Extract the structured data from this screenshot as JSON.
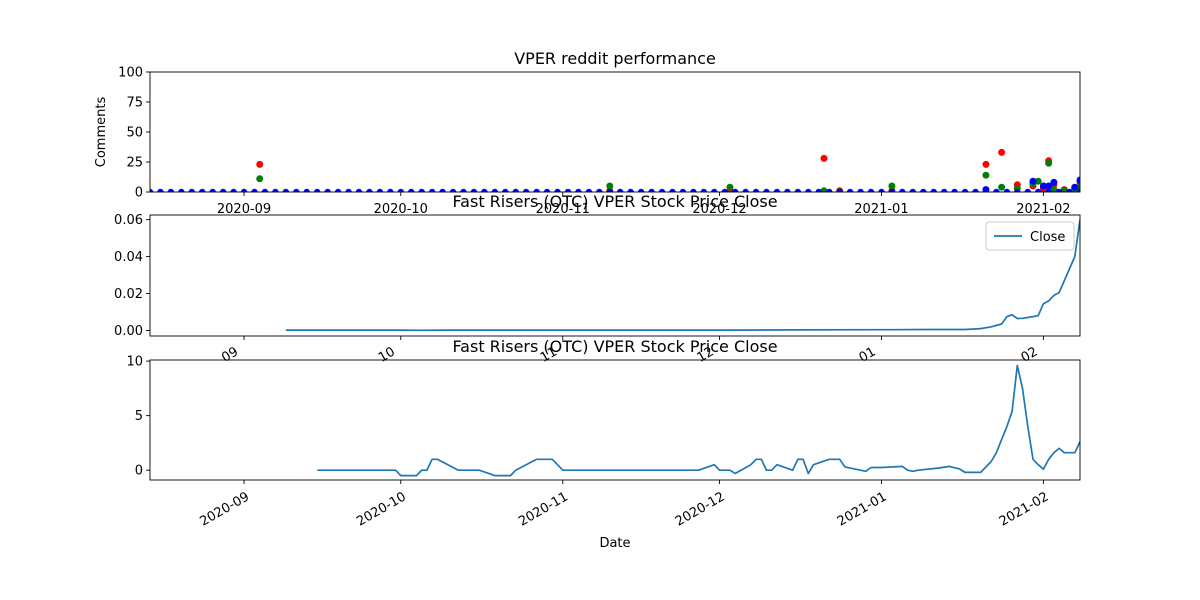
{
  "colors": {
    "red": "#ff0000",
    "green": "#008000",
    "blue": "#0000ff",
    "line": "#1f77b4",
    "frame": "#000000",
    "legend_border": "#cccccc"
  },
  "chart_data": [
    {
      "type": "scatter",
      "title": "VPER reddit performance",
      "xlabel": "",
      "ylabel": "Comments",
      "xlim": [
        "2020-08-14",
        "2021-02-08"
      ],
      "ylim": [
        0,
        100
      ],
      "yticks": [
        0,
        25,
        50,
        75,
        100
      ],
      "xticks": [
        "2020-09",
        "2020-10",
        "2020-11",
        "2020-12",
        "2021-01",
        "2021-02"
      ],
      "grid": false,
      "series": [
        {
          "color": "red",
          "points": [
            [
              "2020-09-04",
              23
            ],
            [
              "2020-11-10",
              1
            ],
            [
              "2020-12-03",
              1
            ],
            [
              "2020-12-21",
              28
            ],
            [
              "2020-12-24",
              1
            ],
            [
              "2021-01-03",
              1
            ],
            [
              "2021-01-21",
              23
            ],
            [
              "2021-01-24",
              33
            ],
            [
              "2021-01-27",
              6
            ],
            [
              "2021-01-30",
              5
            ],
            [
              "2021-02-01",
              3
            ],
            [
              "2021-02-02",
              26
            ],
            [
              "2021-02-03",
              6
            ],
            [
              "2021-02-05",
              2
            ],
            [
              "2021-02-07",
              3
            ],
            [
              "2021-02-08",
              8
            ]
          ]
        },
        {
          "color": "green",
          "points": [
            [
              "2020-09-04",
              11
            ],
            [
              "2020-11-10",
              5
            ],
            [
              "2020-12-03",
              4
            ],
            [
              "2020-12-21",
              1
            ],
            [
              "2020-12-24",
              0
            ],
            [
              "2021-01-03",
              5
            ],
            [
              "2021-01-21",
              14
            ],
            [
              "2021-01-24",
              4
            ],
            [
              "2021-01-27",
              3
            ],
            [
              "2021-01-30",
              7
            ],
            [
              "2021-01-31",
              9
            ],
            [
              "2021-02-01",
              5
            ],
            [
              "2021-02-02",
              24
            ],
            [
              "2021-02-03",
              2
            ],
            [
              "2021-02-05",
              1
            ],
            [
              "2021-02-07",
              3
            ],
            [
              "2021-02-08",
              4
            ]
          ]
        },
        {
          "color": "blue",
          "dense_from": "2020-08-14",
          "dense_to": "2021-02-08",
          "dense_step_days": 2,
          "dense_value": 0,
          "points": [
            [
              "2021-01-21",
              2
            ],
            [
              "2021-01-30",
              9
            ],
            [
              "2021-02-01",
              5
            ],
            [
              "2021-02-02",
              5
            ],
            [
              "2021-02-03",
              8
            ],
            [
              "2021-02-07",
              4
            ],
            [
              "2021-02-08",
              10
            ]
          ]
        }
      ]
    },
    {
      "type": "line",
      "title": "Fast Risers (OTC) VPER Stock Price Close",
      "xlabel": "",
      "ylabel": "",
      "xlim": [
        "2020-08-14",
        "2021-02-08"
      ],
      "ylim": [
        -0.003,
        0.0625
      ],
      "yticks": [
        "0.00",
        "0.02",
        "0.04",
        "0.06"
      ],
      "xticks": [
        "09",
        "10",
        "11",
        "12",
        "01",
        "02"
      ],
      "legend": {
        "position": "top-right",
        "entries": [
          "Close"
        ]
      },
      "series": [
        {
          "name": "Close",
          "color": "line",
          "points": [
            [
              "2020-09-09",
              0.0002
            ],
            [
              "2020-10-01",
              0.0002
            ],
            [
              "2020-10-05",
              0.0001
            ],
            [
              "2020-10-10",
              0.0002
            ],
            [
              "2020-11-01",
              0.0002
            ],
            [
              "2020-12-01",
              0.0002
            ],
            [
              "2020-12-15",
              0.0003
            ],
            [
              "2021-01-01",
              0.0004
            ],
            [
              "2021-01-10",
              0.0005
            ],
            [
              "2021-01-17",
              0.0005
            ],
            [
              "2021-01-20",
              0.001
            ],
            [
              "2021-01-22",
              0.002
            ],
            [
              "2021-01-24",
              0.0035
            ],
            [
              "2021-01-25",
              0.0075
            ],
            [
              "2021-01-26",
              0.0085
            ],
            [
              "2021-01-27",
              0.0065
            ],
            [
              "2021-01-28",
              0.0066
            ],
            [
              "2021-01-30",
              0.0075
            ],
            [
              "2021-01-31",
              0.008
            ],
            [
              "2021-02-01",
              0.0145
            ],
            [
              "2021-02-02",
              0.016
            ],
            [
              "2021-02-03",
              0.019
            ],
            [
              "2021-02-04",
              0.0205
            ],
            [
              "2021-02-07",
              0.04
            ],
            [
              "2021-02-08",
              0.06
            ]
          ]
        }
      ]
    },
    {
      "type": "line",
      "title": "Fast Risers (OTC) VPER Stock Price Close",
      "xlabel": "Date",
      "ylabel": "",
      "xlim": [
        "2020-08-14",
        "2021-02-08"
      ],
      "ylim": [
        -0.9,
        10.1
      ],
      "yticks": [
        0,
        5,
        10
      ],
      "xticks": [
        "2020-09",
        "2020-10",
        "2020-11",
        "2020-12",
        "2021-01",
        "2021-02"
      ],
      "series": [
        {
          "color": "line",
          "points": [
            [
              "2020-09-15",
              0
            ],
            [
              "2020-09-30",
              0
            ],
            [
              "2020-10-01",
              -0.5
            ],
            [
              "2020-10-04",
              -0.5
            ],
            [
              "2020-10-05",
              0
            ],
            [
              "2020-10-06",
              0
            ],
            [
              "2020-10-07",
              1
            ],
            [
              "2020-10-08",
              1
            ],
            [
              "2020-10-12",
              0
            ],
            [
              "2020-10-16",
              0
            ],
            [
              "2020-10-19",
              -0.5
            ],
            [
              "2020-10-22",
              -0.5
            ],
            [
              "2020-10-23",
              0
            ],
            [
              "2020-10-27",
              1
            ],
            [
              "2020-10-30",
              1
            ],
            [
              "2020-11-01",
              0
            ],
            [
              "2020-11-27",
              0
            ],
            [
              "2020-11-30",
              0.5
            ],
            [
              "2020-12-01",
              0
            ],
            [
              "2020-12-03",
              0
            ],
            [
              "2020-12-04",
              -0.3
            ],
            [
              "2020-12-07",
              0.5
            ],
            [
              "2020-12-08",
              1
            ],
            [
              "2020-12-09",
              1
            ],
            [
              "2020-12-10",
              0
            ],
            [
              "2020-12-11",
              0
            ],
            [
              "2020-12-12",
              0.5
            ],
            [
              "2020-12-15",
              0
            ],
            [
              "2020-12-16",
              1
            ],
            [
              "2020-12-17",
              1
            ],
            [
              "2020-12-18",
              -0.3
            ],
            [
              "2020-12-19",
              0.5
            ],
            [
              "2020-12-22",
              1
            ],
            [
              "2020-12-24",
              1
            ],
            [
              "2020-12-25",
              0.3
            ],
            [
              "2020-12-29",
              -0.1
            ],
            [
              "2020-12-30",
              0.25
            ],
            [
              "2021-01-01",
              0.25
            ],
            [
              "2021-01-05",
              0.35
            ],
            [
              "2021-01-06",
              0
            ],
            [
              "2021-01-07",
              -0.1
            ],
            [
              "2021-01-08",
              0
            ],
            [
              "2021-01-12",
              0.2
            ],
            [
              "2021-01-14",
              0.35
            ],
            [
              "2021-01-16",
              0.1
            ],
            [
              "2021-01-17",
              -0.2
            ],
            [
              "2021-01-18",
              -0.2
            ],
            [
              "2021-01-20",
              -0.2
            ],
            [
              "2021-01-21",
              0.3
            ],
            [
              "2021-01-22",
              0.8
            ],
            [
              "2021-01-23",
              1.6
            ],
            [
              "2021-01-24",
              2.8
            ],
            [
              "2021-01-25",
              4
            ],
            [
              "2021-01-26",
              5.4
            ],
            [
              "2021-01-27",
              9.6
            ],
            [
              "2021-01-28",
              7.5
            ],
            [
              "2021-01-29",
              4
            ],
            [
              "2021-01-30",
              1
            ],
            [
              "2021-01-31",
              0.5
            ],
            [
              "2021-02-01",
              0.1
            ],
            [
              "2021-02-02",
              1
            ],
            [
              "2021-02-03",
              1.6
            ],
            [
              "2021-02-04",
              2
            ],
            [
              "2021-02-05",
              1.6
            ],
            [
              "2021-02-07",
              1.6
            ],
            [
              "2021-02-08",
              2.6
            ]
          ]
        }
      ]
    }
  ]
}
